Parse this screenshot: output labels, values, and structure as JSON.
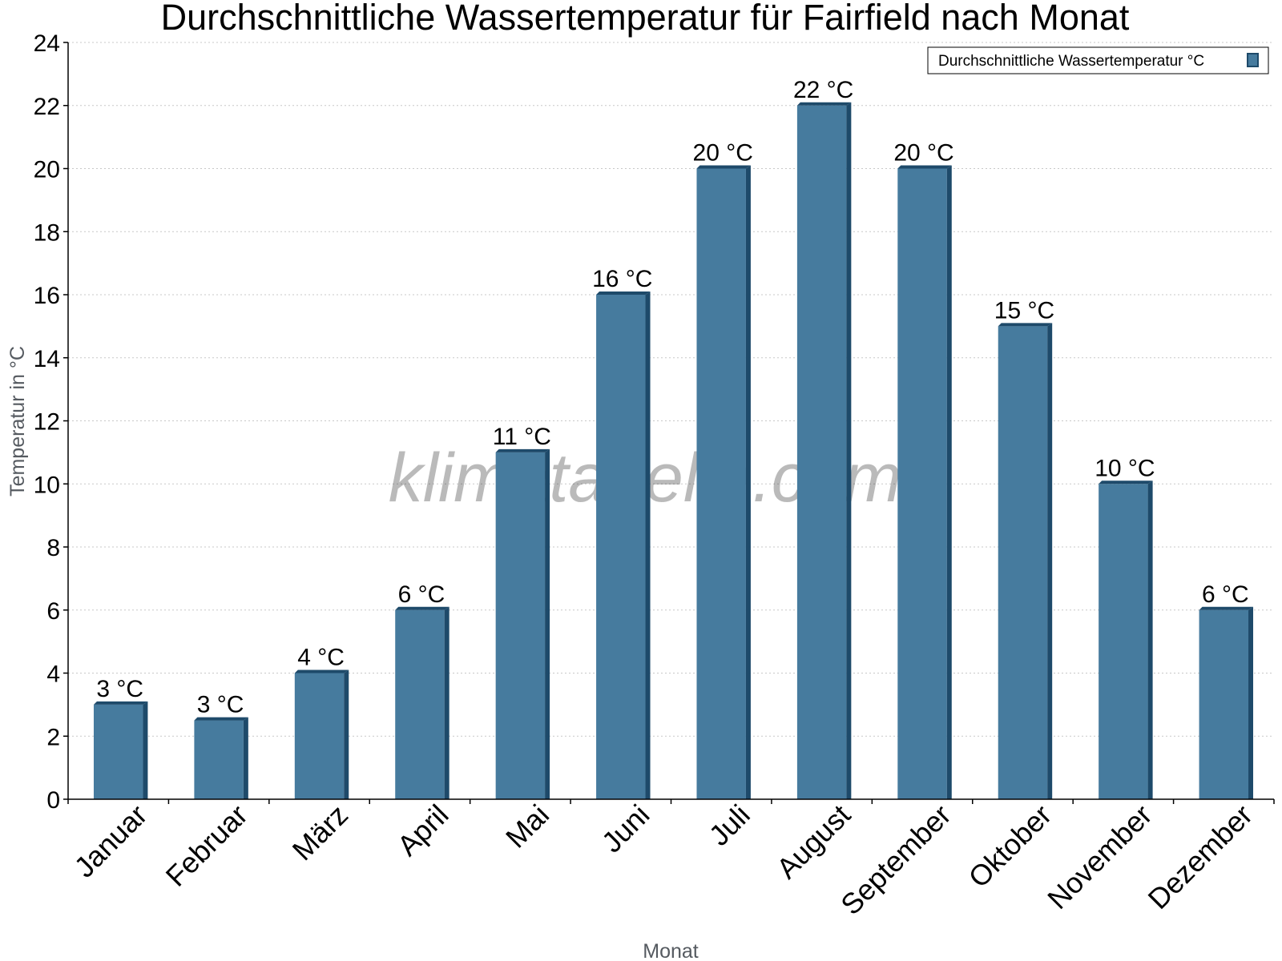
{
  "chart_data": {
    "type": "bar",
    "title": "Durchschnittliche Wassertemperatur für Fairfield nach Monat",
    "xlabel": "Monat",
    "ylabel": "Temperatur in °C",
    "categories": [
      "Januar",
      "Februar",
      "März",
      "April",
      "Mai",
      "Juni",
      "Juli",
      "August",
      "September",
      "Oktober",
      "November",
      "Dezember"
    ],
    "series": [
      {
        "name": "Durchschnittliche Wassertemperatur °C",
        "values": [
          3,
          2.5,
          4,
          6,
          11,
          16,
          20,
          22,
          20,
          15,
          10,
          6
        ],
        "data_labels": [
          "3 °C",
          "3 °C",
          "4 °C",
          "6 °C",
          "11 °C",
          "16 °C",
          "20 °C",
          "22 °C",
          "20 °C",
          "15 °C",
          "10 °C",
          "6 °C"
        ]
      }
    ],
    "ylim": [
      0,
      24
    ],
    "yticks": [
      0,
      2,
      4,
      6,
      8,
      10,
      12,
      14,
      16,
      18,
      20,
      22,
      24
    ],
    "grid": true,
    "legend_position": "top-right",
    "colors": {
      "bar": "#467b9e",
      "bar_side": "#1e4a6a",
      "grid": "#c8c8c8",
      "axis": "#000000"
    }
  },
  "watermark": "klimatabelle.com"
}
